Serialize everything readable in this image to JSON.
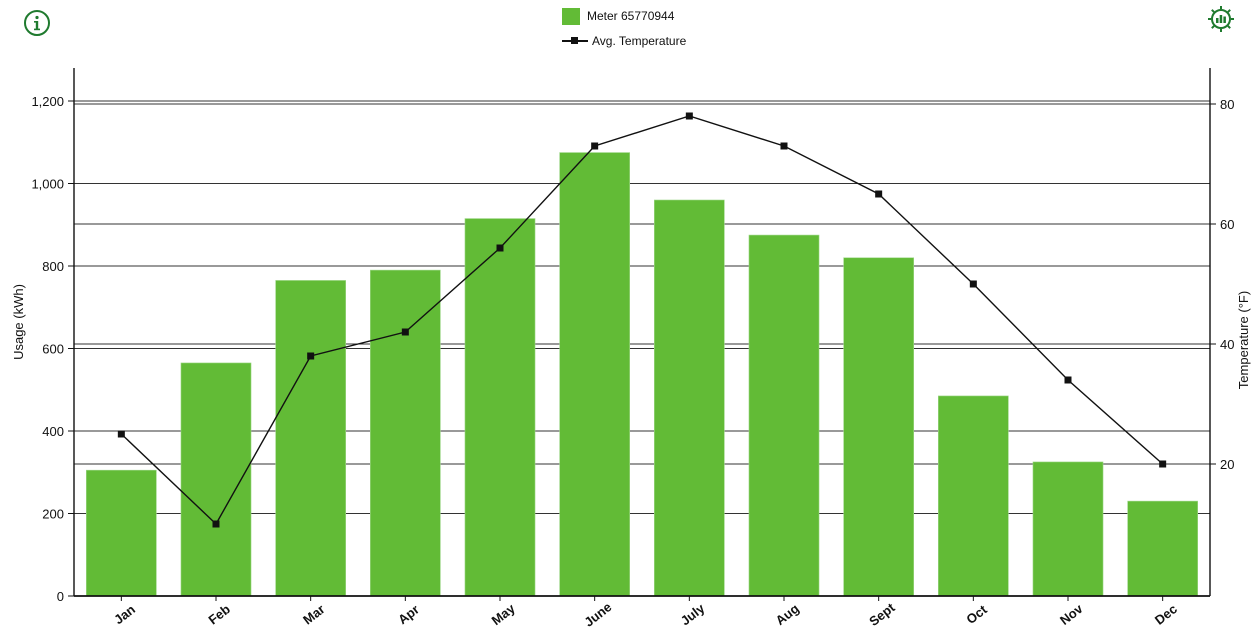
{
  "toolbar": {
    "info_icon": "info-circle-icon",
    "settings_icon": "gear-chart-icon",
    "accent_color": "#1f7a2e"
  },
  "legend": {
    "bar_label": "Meter 65770944",
    "line_label": "Avg. Temperature"
  },
  "chart_data": {
    "type": "bar",
    "categories": [
      "Jan",
      "Feb",
      "Mar",
      "Apr",
      "May",
      "June",
      "July",
      "Aug",
      "Sept",
      "Oct",
      "Nov",
      "Dec"
    ],
    "series": [
      {
        "name": "Meter 65770944",
        "type": "bar",
        "axis": "left",
        "color": "#62bb36",
        "values": [
          305,
          565,
          765,
          790,
          915,
          1075,
          960,
          875,
          820,
          485,
          325,
          230
        ]
      },
      {
        "name": "Avg. Temperature",
        "type": "line",
        "axis": "right",
        "color": "#111111",
        "values": [
          25,
          10,
          38,
          42,
          56,
          73,
          78,
          73,
          65,
          50,
          34,
          20
        ]
      }
    ],
    "ylabel": "Usage (kWh)",
    "ylim": [
      0,
      1280
    ],
    "yticks": [
      "0",
      "200",
      "400",
      "600",
      "800",
      "1,000",
      "1,200"
    ],
    "ytick_values": [
      0,
      200,
      400,
      600,
      800,
      1000,
      1200
    ],
    "y2label": "Temperature (°F)",
    "y2lim": [
      -2,
      86
    ],
    "y2ticks": [
      "20",
      "40",
      "60",
      "80"
    ],
    "y2tick_values": [
      20,
      40,
      60,
      80
    ],
    "grid": true,
    "legend_position": "top-center"
  }
}
